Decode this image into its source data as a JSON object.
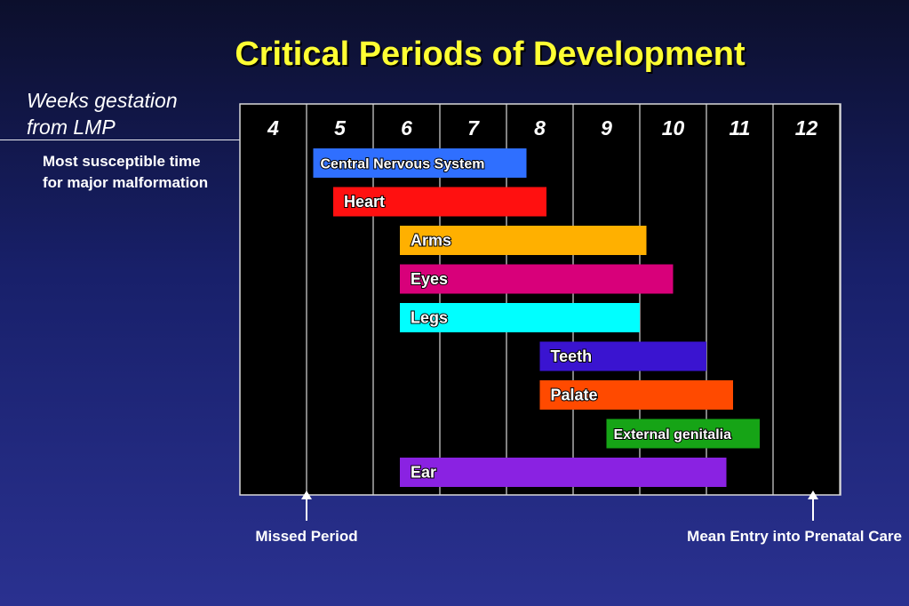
{
  "title": "Critical Periods of Development",
  "y_axis_title": [
    "Weeks gestation",
    "from LMP"
  ],
  "note": "Most susceptible time for major malformation",
  "markers": [
    {
      "label": "Missed Period",
      "week": 4.5
    },
    {
      "label": "Mean Entry into Prenatal Care",
      "week": 12.1
    }
  ],
  "chart_data": {
    "type": "bar",
    "orientation": "horizontal-range",
    "title": "Critical Periods of Development",
    "xlabel": "Weeks gestation from LMP",
    "x_ticks": [
      "4",
      "5",
      "6",
      "7",
      "8",
      "9",
      "10",
      "11",
      "12"
    ],
    "xlim": [
      3.5,
      13.3
    ],
    "grid": true,
    "series": [
      {
        "name": "Central Nervous System",
        "start": 4.6,
        "end": 7.8,
        "color": "#2f6fff"
      },
      {
        "name": "Heart",
        "start": 4.9,
        "end": 8.1,
        "color": "#ff1010"
      },
      {
        "name": "Arms",
        "start": 5.9,
        "end": 9.6,
        "color": "#ffb000"
      },
      {
        "name": "Eyes",
        "start": 5.9,
        "end": 10.0,
        "color": "#d8007a"
      },
      {
        "name": "Legs",
        "start": 5.9,
        "end": 9.5,
        "color": "#00ffff"
      },
      {
        "name": "Teeth",
        "start": 8.0,
        "end": 10.5,
        "color": "#3a14d0"
      },
      {
        "name": "Palate",
        "start": 8.0,
        "end": 10.9,
        "color": "#ff4a00"
      },
      {
        "name": "External genitalia",
        "start": 9.0,
        "end": 11.3,
        "color": "#16a416"
      },
      {
        "name": "Ear",
        "start": 5.9,
        "end": 10.8,
        "color": "#8a22e2"
      }
    ]
  }
}
